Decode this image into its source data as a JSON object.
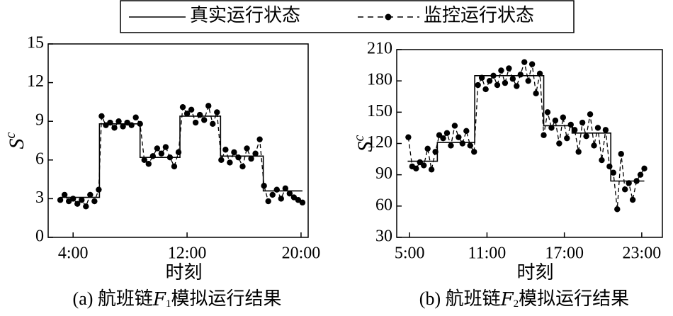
{
  "chart_data": [
    {
      "type": "line",
      "xlabel": "时刻",
      "ylabel": "S",
      "ylabel_superscript": "c",
      "caption": [
        "(a) 航班链",
        "F",
        "1",
        "模拟运行结果"
      ],
      "xlim": [
        2.25,
        20.5
      ],
      "xticks": [
        {
          "value": 4,
          "label": "4:00"
        },
        {
          "value": 12,
          "label": "12:00"
        },
        {
          "value": 20,
          "label": "20:00"
        }
      ],
      "ylim": [
        0,
        15
      ],
      "yticks": [
        0,
        3,
        6,
        9,
        12,
        15
      ],
      "series": [
        {
          "name": "真实运行状态",
          "color": "#000000",
          "line_style": "solid",
          "marker": false,
          "x": [
            3.1,
            5.85,
            5.85,
            8.7,
            8.7,
            11.5,
            11.5,
            14.35,
            14.35,
            17.35,
            17.35,
            20.1
          ],
          "values": [
            3.1,
            3.1,
            8.8,
            8.8,
            6.2,
            6.2,
            9.4,
            9.4,
            6.3,
            6.3,
            3.6,
            3.6
          ]
        },
        {
          "name": "监控运行状态",
          "color": "#000000",
          "line_style": "dashed",
          "marker": true,
          "x": [
            3.1,
            3.4,
            3.7,
            4.0,
            4.3,
            4.6,
            4.9,
            5.2,
            5.5,
            5.8,
            6.0,
            6.3,
            6.6,
            6.9,
            7.2,
            7.5,
            7.8,
            8.1,
            8.4,
            8.7,
            9.0,
            9.3,
            9.6,
            9.9,
            10.2,
            10.5,
            10.8,
            11.1,
            11.4,
            11.7,
            12.0,
            12.3,
            12.6,
            12.9,
            13.2,
            13.5,
            13.8,
            14.1,
            14.4,
            14.7,
            15.0,
            15.3,
            15.6,
            15.9,
            16.2,
            16.5,
            16.8,
            17.1,
            17.4,
            17.7,
            18.0,
            18.3,
            18.6,
            18.9,
            19.2,
            19.5,
            19.8,
            20.1
          ],
          "values": [
            2.9,
            3.3,
            2.8,
            3.0,
            2.6,
            2.9,
            2.4,
            3.3,
            2.8,
            3.7,
            9.4,
            8.7,
            8.9,
            8.5,
            9.0,
            8.6,
            8.9,
            8.7,
            9.3,
            8.8,
            6.0,
            5.7,
            6.3,
            6.9,
            6.5,
            7.0,
            6.2,
            5.5,
            6.6,
            10.1,
            9.6,
            9.9,
            8.9,
            9.5,
            9.1,
            10.2,
            8.8,
            9.7,
            6.0,
            6.8,
            5.8,
            6.6,
            6.2,
            5.5,
            6.9,
            6.1,
            6.5,
            7.6,
            4.0,
            2.8,
            3.3,
            3.7,
            3.0,
            3.8,
            3.4,
            3.1,
            2.9,
            2.7
          ]
        }
      ]
    },
    {
      "type": "line",
      "xlabel": "时刻",
      "ylabel": "S",
      "ylabel_superscript": "c",
      "caption": [
        "(b) 航班链",
        "F",
        "2",
        "模拟运行结果"
      ],
      "xlim": [
        4.0,
        24.6
      ],
      "xticks": [
        {
          "value": 5,
          "label": "5:00"
        },
        {
          "value": 11,
          "label": "11:00"
        },
        {
          "value": 17,
          "label": "17:00"
        },
        {
          "value": 23,
          "label": "23:00"
        }
      ],
      "ylim": [
        30,
        210
      ],
      "yticks": [
        30,
        60,
        90,
        120,
        150,
        180,
        210
      ],
      "series": [
        {
          "name": "真实运行状态",
          "color": "#000000",
          "line_style": "solid",
          "marker": false,
          "x": [
            4.85,
            7.15,
            7.15,
            10.05,
            10.05,
            15.4,
            15.4,
            17.6,
            17.6,
            20.6,
            20.6,
            23.2
          ],
          "values": [
            103,
            103,
            121,
            121,
            185,
            185,
            137,
            137,
            130,
            130,
            84,
            84
          ]
        },
        {
          "name": "监控运行状态",
          "color": "#000000",
          "line_style": "dashed",
          "marker": true,
          "x": [
            4.9,
            5.2,
            5.5,
            5.8,
            6.1,
            6.4,
            6.7,
            7.0,
            7.3,
            7.6,
            7.9,
            8.2,
            8.5,
            8.8,
            9.1,
            9.4,
            9.7,
            10.0,
            10.3,
            10.6,
            10.9,
            11.2,
            11.5,
            11.8,
            12.1,
            12.4,
            12.7,
            13.0,
            13.3,
            13.6,
            13.9,
            14.2,
            14.5,
            14.8,
            15.1,
            15.4,
            15.7,
            16.0,
            16.3,
            16.6,
            16.9,
            17.2,
            17.5,
            17.8,
            18.1,
            18.4,
            18.7,
            19.0,
            19.3,
            19.6,
            19.9,
            20.2,
            20.5,
            20.8,
            21.1,
            21.4,
            21.7,
            22.0,
            22.3,
            22.6,
            22.9,
            23.2
          ],
          "values": [
            126,
            98,
            96,
            102,
            99,
            115,
            95,
            112,
            128,
            125,
            130,
            118,
            137,
            126,
            120,
            132,
            118,
            112,
            176,
            183,
            172,
            180,
            185,
            176,
            190,
            178,
            192,
            182,
            175,
            186,
            198,
            180,
            196,
            168,
            187,
            128,
            150,
            135,
            142,
            120,
            145,
            125,
            138,
            133,
            112,
            140,
            127,
            148,
            118,
            135,
            104,
            133,
            98,
            92,
            57,
            110,
            76,
            82,
            66,
            84,
            90,
            96
          ]
        }
      ]
    }
  ]
}
